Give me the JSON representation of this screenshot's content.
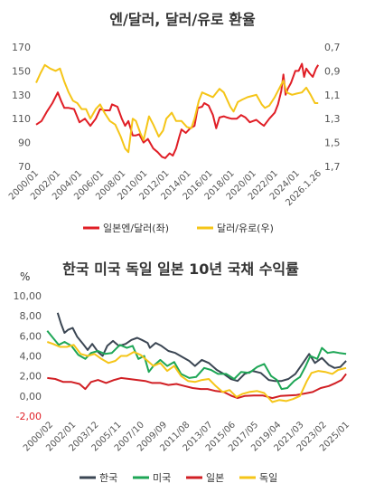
{
  "chart_data": [
    {
      "type": "line",
      "title": "엔/달러, 달러/유로 환율",
      "xlabel": "",
      "x_tick_labels": [
        "2000/01",
        "2002/01",
        "2004/01",
        "2006/01",
        "2008/01",
        "2010/01",
        "2012/01",
        "2014/01",
        "2016/01",
        "2018/01",
        "2020/01",
        "2022/01",
        "2024/01",
        "2026.1.26"
      ],
      "x_range": [
        2000.0,
        2026.07
      ],
      "y_left": {
        "label": "",
        "ylim": [
          70,
          170
        ],
        "ticks": [
          "70",
          "90",
          "110",
          "130",
          "150",
          "170"
        ],
        "tick_values": [
          70,
          90,
          110,
          130,
          150,
          170
        ]
      },
      "y_right": {
        "label": "",
        "ylim": [
          0.7,
          1.7
        ],
        "reversed": true,
        "ticks": [
          "0,7",
          "0,9",
          "1,1",
          "1,3",
          "1,5",
          "1,7"
        ],
        "tick_values": [
          0.7,
          0.9,
          1.1,
          1.3,
          1.5,
          1.7
        ]
      },
      "legend_position": "bottom",
      "series": [
        {
          "name": "일본엔/달러(좌)",
          "axis": "left",
          "color": "#e01e26",
          "x": [
            2000.0,
            2000.5,
            2001.0,
            2001.5,
            2002.0,
            2002.3,
            2002.6,
            2003.0,
            2003.5,
            2004.0,
            2004.5,
            2005.0,
            2005.5,
            2005.9,
            2006.3,
            2006.8,
            2007.0,
            2007.5,
            2007.9,
            2008.2,
            2008.5,
            2008.9,
            2009.2,
            2009.5,
            2009.9,
            2010.3,
            2010.8,
            2011.2,
            2011.6,
            2011.9,
            2012.3,
            2012.6,
            2012.9,
            2013.2,
            2013.4,
            2013.8,
            2014.2,
            2014.6,
            2014.9,
            2015.3,
            2015.5,
            2015.9,
            2016.3,
            2016.6,
            2016.9,
            2017.3,
            2017.6,
            2018.0,
            2018.5,
            2018.9,
            2019.3,
            2019.7,
            2020.0,
            2020.3,
            2020.7,
            2021.0,
            2021.5,
            2022.0,
            2022.3,
            2022.6,
            2022.8,
            2023.0,
            2023.2,
            2023.5,
            2023.9,
            2024.2,
            2024.5,
            2024.7,
            2024.9,
            2025.2,
            2025.5,
            2025.8,
            2026.0
          ],
          "values": [
            105,
            108,
            116,
            123,
            132,
            125,
            119,
            119,
            118,
            107,
            110,
            104,
            110,
            118,
            117,
            117,
            122,
            120,
            110,
            104,
            108,
            96,
            96,
            97,
            90,
            93,
            85,
            82,
            78,
            77,
            81,
            79,
            85,
            95,
            101,
            98,
            102,
            104,
            119,
            120,
            123,
            121,
            113,
            102,
            111,
            112,
            111,
            110,
            110,
            113,
            111,
            107,
            108,
            109,
            106,
            104,
            110,
            115,
            122,
            133,
            147,
            130,
            135,
            140,
            150,
            150,
            156,
            145,
            152,
            148,
            145,
            152,
            155
          ]
        },
        {
          "name": "달러/유로(우)",
          "axis": "right",
          "color": "#f5c518",
          "x": [
            2000.0,
            2000.4,
            2000.8,
            2001.3,
            2001.8,
            2002.2,
            2002.6,
            2003.0,
            2003.4,
            2003.8,
            2004.2,
            2004.6,
            2005.0,
            2005.5,
            2005.9,
            2006.3,
            2006.8,
            2007.3,
            2007.8,
            2008.2,
            2008.5,
            2008.9,
            2009.2,
            2009.6,
            2009.9,
            2010.4,
            2010.8,
            2011.3,
            2011.7,
            2012.0,
            2012.5,
            2012.9,
            2013.4,
            2013.9,
            2014.3,
            2014.6,
            2015.0,
            2015.3,
            2015.8,
            2016.3,
            2016.9,
            2017.3,
            2017.9,
            2018.2,
            2018.6,
            2019.0,
            2019.5,
            2019.9,
            2020.3,
            2020.8,
            2021.1,
            2021.5,
            2022.0,
            2022.4,
            2022.8,
            2023.1,
            2023.6,
            2024.0,
            2024.5,
            2024.9,
            2025.3,
            2025.7,
            2026.0
          ],
          "values": [
            1.0,
            0.92,
            0.85,
            0.88,
            0.9,
            0.88,
            0.99,
            1.08,
            1.15,
            1.17,
            1.22,
            1.22,
            1.3,
            1.22,
            1.18,
            1.25,
            1.32,
            1.35,
            1.45,
            1.55,
            1.58,
            1.3,
            1.32,
            1.42,
            1.48,
            1.28,
            1.35,
            1.45,
            1.4,
            1.3,
            1.25,
            1.32,
            1.32,
            1.37,
            1.38,
            1.3,
            1.15,
            1.08,
            1.1,
            1.12,
            1.05,
            1.08,
            1.2,
            1.24,
            1.16,
            1.14,
            1.12,
            1.11,
            1.1,
            1.18,
            1.21,
            1.19,
            1.12,
            1.05,
            0.98,
            1.08,
            1.1,
            1.09,
            1.08,
            1.04,
            1.1,
            1.17,
            1.17
          ]
        }
      ]
    },
    {
      "type": "line",
      "title": "한국 미국 독일 일본 10년 국채 수익률",
      "unit_label": "%",
      "xlabel": "",
      "x_tick_labels": [
        "2000/02",
        "2002/01",
        "2003/12",
        "2005/11",
        "2007/10",
        "2009/09",
        "2011/08",
        "2013/07",
        "2015/06",
        "2017/05",
        "2019/04",
        "2021/03",
        "2023/02",
        "2025/01"
      ],
      "x_range": [
        2000.08,
        2026.07
      ],
      "ylabel": "",
      "ylim": [
        -2,
        10
      ],
      "y_ticks": [
        "-2,00",
        "0,00",
        "2,00",
        "4,00",
        "6,00",
        "8,00",
        "10,00"
      ],
      "y_tick_values": [
        -2,
        0,
        2,
        4,
        6,
        8,
        10
      ],
      "legend_position": "bottom",
      "series": [
        {
          "name": "한국",
          "color": "#3b4653",
          "x": [
            2001.0,
            2001.3,
            2001.6,
            2001.9,
            2002.3,
            2002.7,
            2003.2,
            2003.6,
            2004.0,
            2004.5,
            2004.9,
            2005.3,
            2005.8,
            2006.3,
            2006.9,
            2007.4,
            2007.9,
            2008.3,
            2008.8,
            2009.0,
            2009.5,
            2010.0,
            2010.6,
            2011.2,
            2011.8,
            2012.4,
            2012.9,
            2013.5,
            2014.1,
            2014.8,
            2015.4,
            2016.0,
            2016.6,
            2017.2,
            2017.9,
            2018.6,
            2019.3,
            2019.8,
            2020.4,
            2021.0,
            2021.6,
            2022.2,
            2022.8,
            2023.3,
            2023.9,
            2024.5,
            2025.0,
            2025.5,
            2026.0
          ],
          "values": [
            8.3,
            7.2,
            6.3,
            6.6,
            6.8,
            5.9,
            5.2,
            4.6,
            5.2,
            4.4,
            4.0,
            5.0,
            5.5,
            5.0,
            5.2,
            5.6,
            5.8,
            5.6,
            5.3,
            4.8,
            5.3,
            5.0,
            4.5,
            4.3,
            3.9,
            3.5,
            3.0,
            3.6,
            3.3,
            2.6,
            2.2,
            1.7,
            1.5,
            2.2,
            2.5,
            2.3,
            1.6,
            1.5,
            1.5,
            1.7,
            2.2,
            3.2,
            4.2,
            3.3,
            3.8,
            3.1,
            2.8,
            2.9,
            3.5
          ]
        },
        {
          "name": "미국",
          "color": "#1ea656",
          "x": [
            2000.1,
            2000.6,
            2001.1,
            2001.6,
            2002.2,
            2002.8,
            2003.4,
            2003.9,
            2004.5,
            2005.1,
            2005.7,
            2006.4,
            2007.0,
            2007.5,
            2008.0,
            2008.5,
            2008.9,
            2009.3,
            2009.9,
            2010.5,
            2011.1,
            2011.7,
            2012.4,
            2013.0,
            2013.7,
            2014.3,
            2014.9,
            2015.6,
            2016.3,
            2016.9,
            2017.6,
            2018.3,
            2018.9,
            2019.5,
            2020.0,
            2020.4,
            2020.9,
            2021.5,
            2022.0,
            2022.5,
            2022.9,
            2023.5,
            2023.9,
            2024.4,
            2024.9,
            2025.4,
            2026.0
          ],
          "values": [
            6.5,
            5.8,
            5.1,
            5.4,
            5.0,
            4.1,
            3.7,
            4.3,
            4.5,
            4.2,
            4.3,
            5.1,
            4.8,
            5.0,
            3.7,
            4.0,
            2.4,
            3.0,
            3.6,
            3.0,
            3.4,
            2.2,
            1.8,
            1.9,
            2.8,
            2.6,
            2.2,
            2.2,
            1.7,
            2.4,
            2.3,
            2.9,
            3.2,
            2.0,
            1.6,
            0.7,
            0.8,
            1.5,
            1.9,
            3.0,
            4.0,
            3.7,
            4.8,
            4.3,
            4.4,
            4.3,
            4.2
          ]
        },
        {
          "name": "일본",
          "color": "#d11f24",
          "x": [
            2000.1,
            2000.8,
            2001.5,
            2002.2,
            2002.9,
            2003.4,
            2003.9,
            2004.5,
            2005.2,
            2005.9,
            2006.5,
            2007.2,
            2007.9,
            2008.6,
            2009.2,
            2009.9,
            2010.6,
            2011.3,
            2012.0,
            2012.7,
            2013.4,
            2014.0,
            2014.7,
            2015.4,
            2016.1,
            2016.6,
            2017.2,
            2018.0,
            2018.8,
            2019.6,
            2020.3,
            2021.0,
            2021.7,
            2022.4,
            2023.1,
            2023.8,
            2024.5,
            2025.1,
            2025.6,
            2026.0
          ],
          "values": [
            1.8,
            1.7,
            1.4,
            1.4,
            1.2,
            0.7,
            1.4,
            1.6,
            1.3,
            1.6,
            1.8,
            1.7,
            1.6,
            1.5,
            1.3,
            1.3,
            1.1,
            1.2,
            1.0,
            0.8,
            0.7,
            0.7,
            0.5,
            0.4,
            0.0,
            -0.2,
            0.0,
            0.05,
            0.05,
            -0.2,
            0.0,
            0.05,
            0.1,
            0.25,
            0.4,
            0.8,
            1.0,
            1.3,
            1.6,
            2.2
          ]
        },
        {
          "name": "독일",
          "color": "#f5c518",
          "x": [
            2000.1,
            2000.6,
            2001.2,
            2001.8,
            2002.4,
            2003.0,
            2003.6,
            2004.2,
            2004.8,
            2005.4,
            2006.0,
            2006.5,
            2007.0,
            2007.6,
            2008.2,
            2008.8,
            2009.3,
            2009.9,
            2010.5,
            2011.1,
            2011.7,
            2012.3,
            2012.9,
            2013.5,
            2014.1,
            2014.7,
            2015.3,
            2015.9,
            2016.5,
            2017.0,
            2017.6,
            2018.3,
            2018.9,
            2019.6,
            2020.2,
            2020.8,
            2021.4,
            2022.0,
            2022.6,
            2023.0,
            2023.6,
            2024.2,
            2024.8,
            2025.3,
            2026.0
          ],
          "values": [
            5.4,
            5.2,
            4.9,
            4.9,
            5.1,
            4.2,
            4.0,
            4.2,
            3.7,
            3.3,
            3.5,
            4.0,
            4.0,
            4.4,
            4.1,
            3.5,
            3.0,
            3.3,
            2.5,
            3.0,
            2.0,
            1.5,
            1.4,
            1.6,
            1.7,
            1.0,
            0.4,
            0.6,
            -0.1,
            0.2,
            0.4,
            0.5,
            0.3,
            -0.6,
            -0.4,
            -0.5,
            -0.3,
            0.0,
            1.5,
            2.3,
            2.5,
            2.4,
            2.2,
            2.6,
            2.8
          ]
        }
      ]
    }
  ]
}
